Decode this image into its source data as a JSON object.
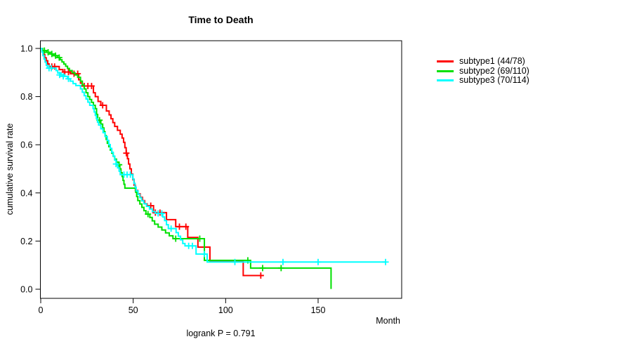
{
  "title": "Time to Death",
  "footer_annotation": "logrank P = 0.791",
  "x_axis": {
    "label": "Month",
    "ticks": [
      0,
      50,
      100,
      150
    ]
  },
  "y_axis": {
    "label": "cumulative survival rate",
    "ticks": [
      0.0,
      0.2,
      0.4,
      0.6,
      0.8,
      1.0
    ]
  },
  "chart_data": {
    "type": "line",
    "subtype": "kaplan-meier-step",
    "title": "Time to Death",
    "xlabel": "Month",
    "ylabel": "cumulative survival rate",
    "annotation": "logrank P = 0.791",
    "logrank_p": 0.791,
    "xlim": [
      0,
      195
    ],
    "ylim": [
      0,
      1.04
    ],
    "grid": false,
    "legend_position": "right-outside",
    "axis_color": "#000000",
    "series": [
      {
        "name": "subtype1 (44/78)",
        "color": "#ff0000",
        "end": 120.5,
        "steps": [
          [
            0,
            1.0
          ],
          [
            0.7,
            0.987
          ],
          [
            1.4,
            0.974
          ],
          [
            2.2,
            0.961
          ],
          [
            3,
            0.949
          ],
          [
            3.8,
            0.936
          ],
          [
            4.5,
            0.925
          ],
          [
            10,
            0.912
          ],
          [
            12,
            0.902
          ],
          [
            16,
            0.895
          ],
          [
            20.5,
            0.87
          ],
          [
            21.5,
            0.856
          ],
          [
            22.5,
            0.844
          ],
          [
            28.5,
            0.816
          ],
          [
            29.5,
            0.8
          ],
          [
            31,
            0.78
          ],
          [
            32.5,
            0.764
          ],
          [
            35.5,
            0.74
          ],
          [
            37,
            0.724
          ],
          [
            38,
            0.708
          ],
          [
            39,
            0.692
          ],
          [
            40,
            0.676
          ],
          [
            41.5,
            0.66
          ],
          [
            43,
            0.644
          ],
          [
            44,
            0.628
          ],
          [
            44.8,
            0.61
          ],
          [
            45.5,
            0.588
          ],
          [
            46.2,
            0.565
          ],
          [
            46.9,
            0.542
          ],
          [
            47.5,
            0.52
          ],
          [
            48.2,
            0.5
          ],
          [
            49,
            0.478
          ],
          [
            49.8,
            0.455
          ],
          [
            50.5,
            0.432
          ],
          [
            51.2,
            0.41
          ],
          [
            52.5,
            0.396
          ],
          [
            53.8,
            0.382
          ],
          [
            55,
            0.368
          ],
          [
            56.2,
            0.355
          ],
          [
            57.5,
            0.347
          ],
          [
            61,
            0.318
          ],
          [
            68,
            0.289
          ],
          [
            73,
            0.26
          ],
          [
            79.5,
            0.215
          ],
          [
            85,
            0.175
          ],
          [
            91.5,
            0.117
          ],
          [
            109.5,
            0.057
          ]
        ],
        "censors": [
          [
            6,
            0.925
          ],
          [
            7.5,
            0.925
          ],
          [
            13,
            0.902
          ],
          [
            15,
            0.902
          ],
          [
            18,
            0.895
          ],
          [
            20,
            0.895
          ],
          [
            23.5,
            0.844
          ],
          [
            25.5,
            0.844
          ],
          [
            27.5,
            0.844
          ],
          [
            33.5,
            0.764
          ],
          [
            46.3,
            0.565
          ],
          [
            59.5,
            0.347
          ],
          [
            62,
            0.318
          ],
          [
            64.5,
            0.318
          ],
          [
            75,
            0.26
          ],
          [
            78.5,
            0.26
          ],
          [
            119,
            0.057
          ]
        ]
      },
      {
        "name": "subtype2 (69/110)",
        "color": "#00e000",
        "end": 157,
        "steps": [
          [
            0,
            1.0
          ],
          [
            1,
            0.991
          ],
          [
            3,
            0.984
          ],
          [
            5,
            0.977
          ],
          [
            7,
            0.97
          ],
          [
            9,
            0.962
          ],
          [
            10.5,
            0.953
          ],
          [
            11.5,
            0.944
          ],
          [
            12.5,
            0.935
          ],
          [
            13.5,
            0.926
          ],
          [
            14.5,
            0.917
          ],
          [
            15.5,
            0.908
          ],
          [
            17,
            0.899
          ],
          [
            18.5,
            0.89
          ],
          [
            20,
            0.88
          ],
          [
            21.5,
            0.864
          ],
          [
            22.5,
            0.848
          ],
          [
            23.5,
            0.832
          ],
          [
            24.5,
            0.816
          ],
          [
            25.5,
            0.8
          ],
          [
            26.5,
            0.788
          ],
          [
            27.5,
            0.776
          ],
          [
            28.5,
            0.764
          ],
          [
            29.5,
            0.75
          ],
          [
            30.2,
            0.726
          ],
          [
            30.8,
            0.702
          ],
          [
            32.5,
            0.686
          ],
          [
            33.5,
            0.67
          ],
          [
            34.2,
            0.654
          ],
          [
            34.8,
            0.638
          ],
          [
            35.4,
            0.622
          ],
          [
            36,
            0.606
          ],
          [
            36.8,
            0.592
          ],
          [
            37.6,
            0.578
          ],
          [
            38.4,
            0.565
          ],
          [
            39.2,
            0.552
          ],
          [
            40,
            0.54
          ],
          [
            41,
            0.528
          ],
          [
            42,
            0.517
          ],
          [
            42.8,
            0.5
          ],
          [
            43.4,
            0.484
          ],
          [
            44,
            0.468
          ],
          [
            44.5,
            0.452
          ],
          [
            45,
            0.436
          ],
          [
            45.5,
            0.42
          ],
          [
            51.3,
            0.403
          ],
          [
            51.9,
            0.385
          ],
          [
            52.5,
            0.368
          ],
          [
            53.6,
            0.354
          ],
          [
            54.7,
            0.34
          ],
          [
            55.8,
            0.326
          ],
          [
            56.9,
            0.312
          ],
          [
            59,
            0.298
          ],
          [
            60.3,
            0.284
          ],
          [
            61.6,
            0.27
          ],
          [
            63.5,
            0.258
          ],
          [
            65.5,
            0.246
          ],
          [
            67.5,
            0.234
          ],
          [
            69.5,
            0.222
          ],
          [
            71.5,
            0.21
          ],
          [
            88.5,
            0.12
          ],
          [
            113.5,
            0.088
          ],
          [
            157,
            0.001
          ]
        ],
        "censors": [
          [
            2,
            0.991
          ],
          [
            4,
            0.984
          ],
          [
            6,
            0.977
          ],
          [
            8,
            0.97
          ],
          [
            10,
            0.962
          ],
          [
            31.8,
            0.702
          ],
          [
            42.4,
            0.517
          ],
          [
            58,
            0.312
          ],
          [
            73,
            0.21
          ],
          [
            86,
            0.21
          ],
          [
            112,
            0.12
          ],
          [
            120,
            0.088
          ],
          [
            130,
            0.088
          ]
        ]
      },
      {
        "name": "subtype3 (70/114)",
        "color": "#00ffff",
        "end": 186.5,
        "steps": [
          [
            0,
            1.0
          ],
          [
            0.6,
            0.985
          ],
          [
            1.2,
            0.97
          ],
          [
            1.8,
            0.956
          ],
          [
            2.4,
            0.943
          ],
          [
            3,
            0.93
          ],
          [
            3.6,
            0.918
          ],
          [
            8.3,
            0.908
          ],
          [
            9.2,
            0.898
          ],
          [
            11,
            0.89
          ],
          [
            13,
            0.884
          ],
          [
            14.5,
            0.874
          ],
          [
            16,
            0.864
          ],
          [
            17.5,
            0.854
          ],
          [
            19,
            0.846
          ],
          [
            21.5,
            0.832
          ],
          [
            22.5,
            0.818
          ],
          [
            23.5,
            0.804
          ],
          [
            24.5,
            0.79
          ],
          [
            25.5,
            0.777
          ],
          [
            26.5,
            0.764
          ],
          [
            28.3,
            0.75
          ],
          [
            28.9,
            0.736
          ],
          [
            29.5,
            0.722
          ],
          [
            30.1,
            0.708
          ],
          [
            30.7,
            0.694
          ],
          [
            31.3,
            0.682
          ],
          [
            32.5,
            0.666
          ],
          [
            33.7,
            0.65
          ],
          [
            34.8,
            0.634
          ],
          [
            36,
            0.618
          ],
          [
            36.8,
            0.601
          ],
          [
            37.6,
            0.585
          ],
          [
            38.4,
            0.569
          ],
          [
            39.2,
            0.553
          ],
          [
            40,
            0.536
          ],
          [
            40.8,
            0.52
          ],
          [
            41.6,
            0.504
          ],
          [
            42.4,
            0.49
          ],
          [
            43,
            0.476
          ],
          [
            49.8,
            0.458
          ],
          [
            50.4,
            0.44
          ],
          [
            51,
            0.424
          ],
          [
            51.6,
            0.408
          ],
          [
            52.6,
            0.394
          ],
          [
            53.6,
            0.38
          ],
          [
            54.6,
            0.367
          ],
          [
            55.8,
            0.355
          ],
          [
            57.2,
            0.344
          ],
          [
            58.8,
            0.333
          ],
          [
            60.4,
            0.322
          ],
          [
            62,
            0.315
          ],
          [
            66,
            0.3
          ],
          [
            67,
            0.285
          ],
          [
            68,
            0.268
          ],
          [
            69,
            0.252
          ],
          [
            73.2,
            0.235
          ],
          [
            74.4,
            0.22
          ],
          [
            75.6,
            0.205
          ],
          [
            76.8,
            0.19
          ],
          [
            78,
            0.18
          ],
          [
            84,
            0.146
          ],
          [
            90,
            0.113
          ]
        ],
        "censors": [
          [
            4.5,
            0.918
          ],
          [
            5.7,
            0.918
          ],
          [
            10.2,
            0.89
          ],
          [
            12.2,
            0.884
          ],
          [
            15,
            0.874
          ],
          [
            40.7,
            0.52
          ],
          [
            45,
            0.476
          ],
          [
            46.7,
            0.476
          ],
          [
            48.5,
            0.476
          ],
          [
            63.5,
            0.315
          ],
          [
            65.5,
            0.315
          ],
          [
            70.5,
            0.252
          ],
          [
            80,
            0.18
          ],
          [
            82,
            0.18
          ],
          [
            88.5,
            0.146
          ],
          [
            105,
            0.113
          ],
          [
            131,
            0.113
          ],
          [
            150,
            0.113
          ],
          [
            186.5,
            0.113
          ]
        ]
      }
    ]
  }
}
